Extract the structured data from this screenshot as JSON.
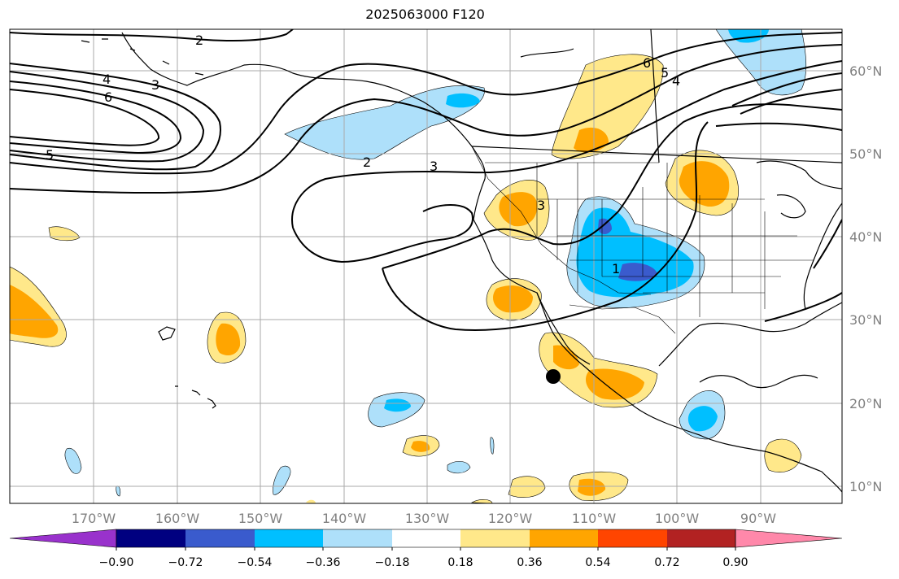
{
  "title": "2025063000 F120",
  "colors": {
    "neg_extreme": "#9932cc",
    "neg_090": "#000080",
    "neg_072": "#3a5bcd",
    "neg_054": "#00bfff",
    "neg_036": "#aee0fa",
    "neutral": "#ffffff",
    "pos_018": "#ffe88a",
    "pos_036": "#ffa500",
    "pos_054": "#ff4500",
    "pos_072": "#b22222",
    "pos_extreme": "#ff88aa",
    "gridline": "#aaaaaa",
    "tick_label": "#808080"
  },
  "lon_labels": [
    "170°W",
    "160°W",
    "150°W",
    "140°W",
    "130°W",
    "120°W",
    "110°W",
    "100°W",
    "90°W"
  ],
  "lat_labels": [
    "60°N",
    "50°N",
    "40°N",
    "30°N",
    "20°N",
    "10°N"
  ],
  "colorbar": {
    "tick_labels": [
      "−0.90",
      "−0.72",
      "−0.54",
      "−0.36",
      "−0.18",
      "0.18",
      "0.36",
      "0.54",
      "0.72",
      "0.90"
    ]
  },
  "contour_labels": [
    "2",
    "4",
    "3",
    "6",
    "5",
    "2",
    "3",
    "6",
    "5",
    "4",
    "3",
    "1"
  ],
  "marker": {
    "name": "black dot",
    "lon": -115.2,
    "lat": 23.1
  }
}
